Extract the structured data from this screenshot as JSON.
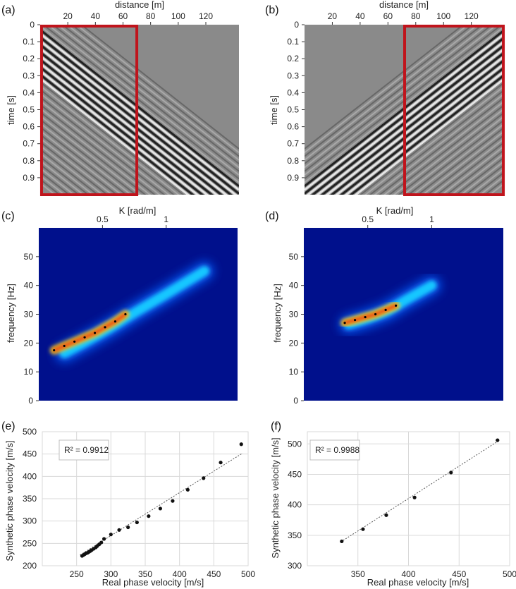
{
  "figure": {
    "panel_labels": [
      "(a)",
      "(b)",
      "(c)",
      "(d)",
      "(e)",
      "(f)"
    ]
  },
  "chart_data": [
    {
      "id": "a",
      "type": "heatmap",
      "description_kind": "seismic gather",
      "xlabel": "distance [m]",
      "ylabel": "time [s]",
      "xlim": [
        0,
        144
      ],
      "ylim": [
        0,
        1.0
      ],
      "xticks": [
        20,
        40,
        60,
        80,
        100,
        120
      ],
      "yticks": [
        0,
        0.1,
        0.2,
        0.3,
        0.4,
        0.5,
        0.6,
        0.7,
        0.8,
        0.9
      ],
      "ytick_labels": [
        "0",
        "0.1",
        "0.2",
        "0.3",
        "0.4",
        "0.5",
        "0.6",
        "0.7",
        "0.8",
        "0.9"
      ],
      "highlight_window": {
        "x": [
          1,
          70
        ],
        "t": [
          0,
          1.0
        ],
        "color": "#c0141c"
      },
      "source_side": "left",
      "colormap": "gray"
    },
    {
      "id": "b",
      "type": "heatmap",
      "description_kind": "seismic gather",
      "xlabel": "distance [m]",
      "ylabel": "time [s]",
      "xlim": [
        0,
        144
      ],
      "ylim": [
        0,
        1.0
      ],
      "xticks": [
        20,
        40,
        60,
        80,
        100,
        120
      ],
      "yticks": [
        0,
        0.1,
        0.2,
        0.3,
        0.4,
        0.5,
        0.6,
        0.7,
        0.8,
        0.9
      ],
      "ytick_labels": [
        "0",
        "0.1",
        "0.2",
        "0.3",
        "0.4",
        "0.5",
        "0.6",
        "0.7",
        "0.8",
        "0.9"
      ],
      "highlight_window": {
        "x": [
          72,
          143
        ],
        "t": [
          0,
          1.0
        ],
        "color": "#c0141c"
      },
      "source_side": "right",
      "colormap": "gray"
    },
    {
      "id": "c",
      "type": "heatmap",
      "description_kind": "f-k spectrum",
      "xlabel": "K [rad/m]",
      "ylabel": "frequency [Hz]",
      "xlim": [
        0,
        1.56
      ],
      "ylim": [
        0,
        60
      ],
      "xticks": [
        0.5,
        1
      ],
      "xtick_labels": [
        "0.5",
        "1"
      ],
      "yticks": [
        0,
        10,
        20,
        30,
        40,
        50
      ],
      "ytick_labels": [
        "0",
        "10",
        "20",
        "30",
        "40",
        "50"
      ],
      "colormap": "jet",
      "ridge": {
        "k": [
          0.2,
          0.35,
          0.55,
          0.75,
          1.0,
          1.3
        ],
        "f": [
          16.5,
          20,
          25,
          30.5,
          37,
          45
        ]
      },
      "dispersion_picks": {
        "k": [
          0.12,
          0.2,
          0.28,
          0.36,
          0.44,
          0.52,
          0.6,
          0.68
        ],
        "f": [
          17.5,
          19,
          20.5,
          22,
          23.5,
          25.5,
          27.5,
          30
        ]
      }
    },
    {
      "id": "d",
      "type": "heatmap",
      "description_kind": "f-k spectrum",
      "xlabel": "K [rad/m]",
      "ylabel": "frequency [Hz]",
      "xlim": [
        0,
        1.56
      ],
      "ylim": [
        0,
        60
      ],
      "xticks": [
        0.5,
        1
      ],
      "xtick_labels": [
        "0.5",
        "1"
      ],
      "yticks": [
        0,
        10,
        20,
        30,
        40,
        50
      ],
      "ytick_labels": [
        "0",
        "10",
        "20",
        "30",
        "40",
        "50"
      ],
      "colormap": "jet",
      "ridge": {
        "k": [
          0.35,
          0.5,
          0.65,
          0.8,
          1.0
        ],
        "f": [
          26.5,
          28.5,
          31,
          35,
          40
        ]
      },
      "dispersion_picks": {
        "k": [
          0.32,
          0.4,
          0.48,
          0.56,
          0.64,
          0.72
        ],
        "f": [
          27,
          28,
          29,
          30,
          31.5,
          33
        ]
      }
    },
    {
      "id": "e",
      "type": "scatter",
      "xlabel": "Real phase velocity [m/s]",
      "ylabel": "Synthetic phase velocity [m/s]",
      "xlim": [
        200,
        500
      ],
      "ylim": [
        200,
        500
      ],
      "xticks": [
        250,
        300,
        350,
        400,
        450,
        500
      ],
      "yticks": [
        200,
        250,
        300,
        350,
        400,
        450,
        500
      ],
      "annotation": "R² = 0.9912",
      "x": [
        258,
        260,
        262,
        264,
        266,
        268,
        270,
        272,
        275,
        278,
        280,
        283,
        286,
        290,
        300,
        312,
        325,
        338,
        355,
        372,
        390,
        412,
        435,
        460,
        490
      ],
      "y": [
        222,
        224,
        226,
        228,
        229,
        231,
        233,
        235,
        238,
        241,
        244,
        248,
        252,
        260,
        270,
        280,
        286,
        297,
        311,
        328,
        345,
        370,
        396,
        431,
        472
      ],
      "trendline": {
        "x": [
          255,
          492
        ],
        "y": [
          224,
          452
        ]
      }
    },
    {
      "id": "f",
      "type": "scatter",
      "xlabel": "Real phase velocity [m/s]",
      "ylabel": "Synthetic phase velocity [m/s]",
      "xlim": [
        300,
        500
      ],
      "ylim": [
        300,
        520
      ],
      "xticks": [
        350,
        400,
        450,
        500
      ],
      "yticks": [
        300,
        350,
        400,
        450,
        500
      ],
      "annotation": "R² = 0.9988",
      "x": [
        334,
        355,
        378,
        406,
        442,
        488
      ],
      "y": [
        340,
        360,
        383,
        412,
        453,
        506
      ],
      "trendline": {
        "x": [
          333,
          490
        ],
        "y": [
          339,
          506
        ]
      }
    }
  ]
}
